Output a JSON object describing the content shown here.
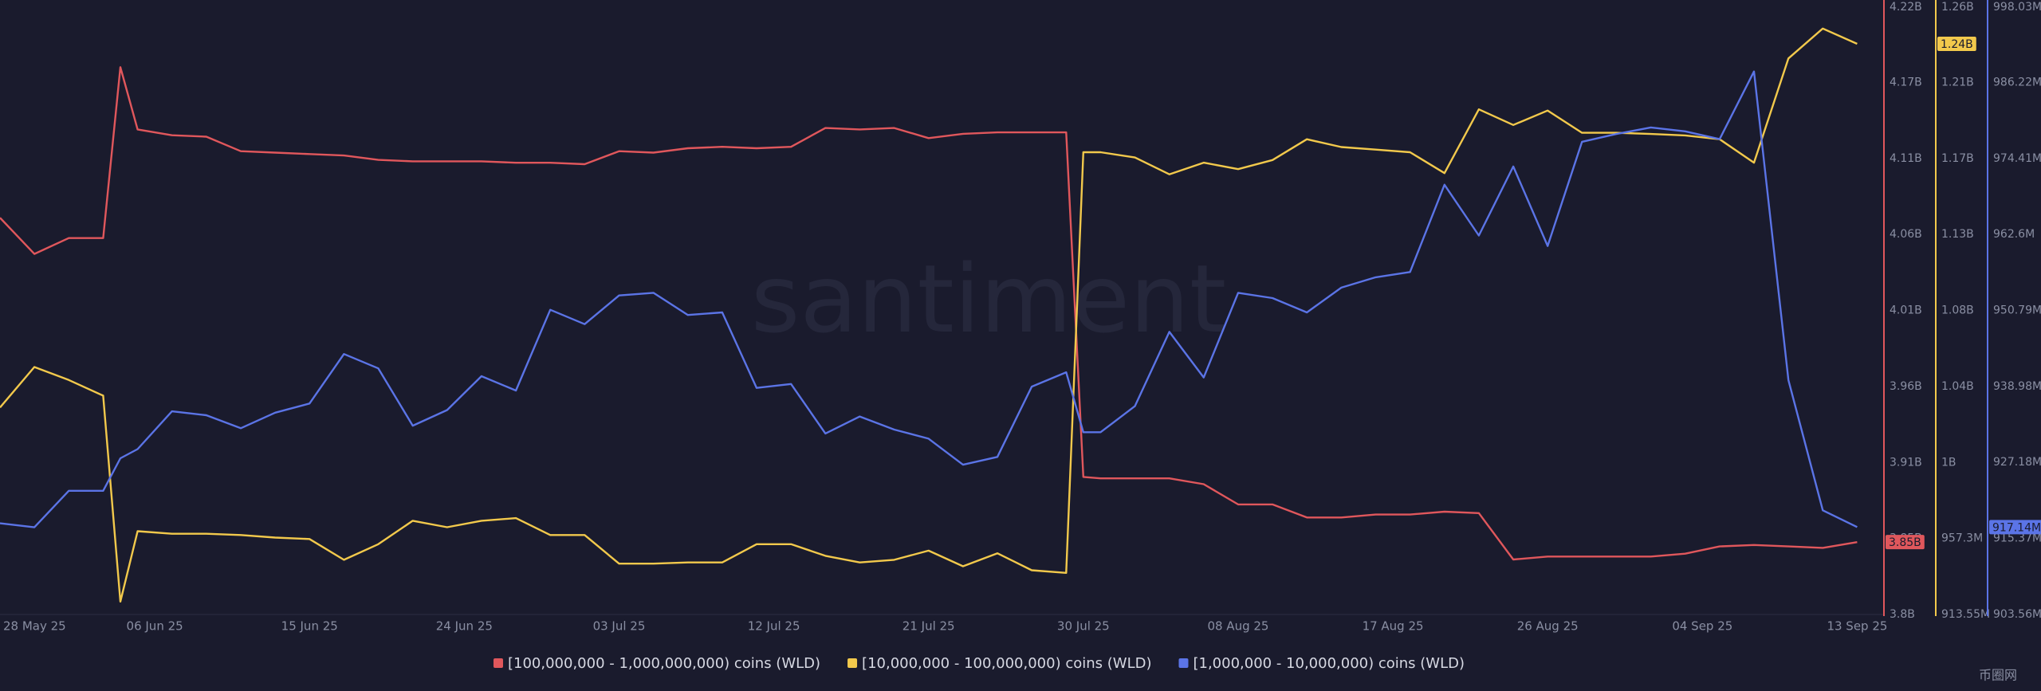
{
  "chart_data": {
    "type": "line",
    "watermark": "santiment",
    "corner_logo": "币圈网",
    "x": [
      "2025-05-28",
      "2025-05-30",
      "2025-06-01",
      "2025-06-03",
      "2025-06-04",
      "2025-06-05",
      "2025-06-07",
      "2025-06-09",
      "2025-06-11",
      "2025-06-13",
      "2025-06-15",
      "2025-06-17",
      "2025-06-19",
      "2025-06-21",
      "2025-06-23",
      "2025-06-25",
      "2025-06-27",
      "2025-06-29",
      "2025-07-01",
      "2025-07-03",
      "2025-07-05",
      "2025-07-07",
      "2025-07-09",
      "2025-07-11",
      "2025-07-13",
      "2025-07-15",
      "2025-07-17",
      "2025-07-19",
      "2025-07-21",
      "2025-07-23",
      "2025-07-25",
      "2025-07-27",
      "2025-07-29",
      "2025-07-30",
      "2025-07-31",
      "2025-08-02",
      "2025-08-04",
      "2025-08-06",
      "2025-08-08",
      "2025-08-10",
      "2025-08-12",
      "2025-08-14",
      "2025-08-16",
      "2025-08-18",
      "2025-08-20",
      "2025-08-22",
      "2025-08-24",
      "2025-08-26",
      "2025-08-28",
      "2025-08-30",
      "2025-09-01",
      "2025-09-03",
      "2025-09-05",
      "2025-09-07",
      "2025-09-09",
      "2025-09-11",
      "2025-09-13"
    ],
    "xlim": [
      "2025-05-28",
      "2025-09-14"
    ],
    "xticks": [
      {
        "value": "2025-05-28",
        "label": "28 May 25"
      },
      {
        "value": "2025-06-06",
        "label": "06 Jun 25"
      },
      {
        "value": "2025-06-15",
        "label": "15 Jun 25"
      },
      {
        "value": "2025-06-24",
        "label": "24 Jun 25"
      },
      {
        "value": "2025-07-03",
        "label": "03 Jul 25"
      },
      {
        "value": "2025-07-12",
        "label": "12 Jul 25"
      },
      {
        "value": "2025-07-21",
        "label": "21 Jul 25"
      },
      {
        "value": "2025-07-30",
        "label": "30 Jul 25"
      },
      {
        "value": "2025-08-08",
        "label": "08 Aug 25"
      },
      {
        "value": "2025-08-17",
        "label": "17 Aug 25"
      },
      {
        "value": "2025-08-26",
        "label": "26 Aug 25"
      },
      {
        "value": "2025-09-04",
        "label": "04 Sep 25"
      },
      {
        "value": "2025-09-13",
        "label": "13 Sep 25"
      }
    ],
    "ylim": [
      3800000000.0,
      4220000000.0
    ],
    "yticks": [
      {
        "value": 3800000000.0,
        "label": "3.8B"
      },
      {
        "value": 3852500000.0,
        "label": "3.85B"
      },
      {
        "value": 3905000000.0,
        "label": "3.91B"
      },
      {
        "value": 3957500000.0,
        "label": "3.96B"
      },
      {
        "value": 4010000000.0,
        "label": "4.01B"
      },
      {
        "value": 4062500000.0,
        "label": "4.06B"
      },
      {
        "value": 4115000000.0,
        "label": "4.11B"
      },
      {
        "value": 4167500000.0,
        "label": "4.17B"
      },
      {
        "value": 4220000000.0,
        "label": "4.22B"
      }
    ],
    "y2lim": [
      913550000.0,
      1263550000.0
    ],
    "y2ticks": [
      {
        "value": 913550000.0,
        "label": "913.55M"
      },
      {
        "value": 957300000.0,
        "label": "957.3M"
      },
      {
        "value": 1001050000.0,
        "label": "1B"
      },
      {
        "value": 1044800000.0,
        "label": "1.04B"
      },
      {
        "value": 1088550000.0,
        "label": "1.08B"
      },
      {
        "value": 1132300000.0,
        "label": "1.13B"
      },
      {
        "value": 1176050000.0,
        "label": "1.17B"
      },
      {
        "value": 1219800000.0,
        "label": "1.21B"
      },
      {
        "value": 1263550000.0,
        "label": "1.26B"
      }
    ],
    "y3lim": [
      903560000.0,
      998030000.0
    ],
    "y3ticks": [
      {
        "value": 903560000.0,
        "label": "903.56M"
      },
      {
        "value": 915370000.0,
        "label": "915.37M"
      },
      {
        "value": 927180000.0,
        "label": "927.18M"
      },
      {
        "value": 938980000.0,
        "label": "938.98M"
      },
      {
        "value": 950790000.0,
        "label": "950.79M"
      },
      {
        "value": 962600000.0,
        "label": "962.6M"
      },
      {
        "value": 974410000.0,
        "label": "974.41M"
      },
      {
        "value": 986220000.0,
        "label": "986.22M"
      },
      {
        "value": 998030000.0,
        "label": "998.03M"
      }
    ],
    "series": [
      {
        "name": "[100,000,000 - 1,000,000,000) coins (WLD)",
        "color": "#e0575c",
        "axis": "y",
        "last_label": "3.85B",
        "values": [
          4074000000.0,
          4049000000.0,
          4060000000.0,
          4060000000.0,
          4178000000.0,
          4135000000.0,
          4131000000.0,
          4130000000.0,
          4120000000.0,
          4119000000.0,
          4118000000.0,
          4117000000.0,
          4114000000.0,
          4113000000.0,
          4113000000.0,
          4113000000.0,
          4112000000.0,
          4112000000.0,
          4111000000.0,
          4120000000.0,
          4119000000.0,
          4122000000.0,
          4123000000.0,
          4122000000.0,
          4123000000.0,
          4136000000.0,
          4135000000.0,
          4136000000.0,
          4129000000.0,
          4132000000.0,
          4133000000.0,
          4133000000.0,
          4133000000.0,
          3895000000.0,
          3894000000.0,
          3894000000.0,
          3894000000.0,
          3890000000.0,
          3876000000.0,
          3876000000.0,
          3867000000.0,
          3867000000.0,
          3869000000.0,
          3869000000.0,
          3871000000.0,
          3870000000.0,
          3838000000.0,
          3840000000.0,
          3840000000.0,
          3840000000.0,
          3840000000.0,
          3842000000.0,
          3847000000.0,
          3848000000.0,
          3847000000.0,
          3846000000.0,
          3850000000.0
        ]
      },
      {
        "name": "[10,000,000 - 100,000,000) coins (WLD)",
        "color": "#f2c94c",
        "axis": "y2",
        "last_label": "1.24B",
        "values": [
          1032700000.0,
          1056000000.0,
          1048500000.0,
          1039500000.0,
          921000000.0,
          961500000.0,
          960000000.0,
          960000000.0,
          959300000.0,
          957800000.0,
          957000000.0,
          945000000.0,
          954000000.0,
          967500000.0,
          963800000.0,
          967500000.0,
          969000000.0,
          959300000.0,
          959300000.0,
          942800000.0,
          942800000.0,
          943500000.0,
          943500000.0,
          954000000.0,
          954000000.0,
          947300000.0,
          943500000.0,
          945000000.0,
          950300000.0,
          941300000.0,
          948800000.0,
          939000000.0,
          937500000.0,
          1179600000.0,
          1179600000.0,
          1176600000.0,
          1166900000.0,
          1173600000.0,
          1169900000.0,
          1175100000.0,
          1187100000.0,
          1182600000.0,
          1181100000.0,
          1179600000.0,
          1167600000.0,
          1204300000.0,
          1195300000.0,
          1203600000.0,
          1190800000.0,
          1190800000.0,
          1190100000.0,
          1189300000.0,
          1187100000.0,
          1173600000.0,
          1233600000.0,
          1250800000.0,
          1242000000.0
        ]
      },
      {
        "name": "[1,000,000 - 10,000,000) coins (WLD)",
        "color": "#5b74e6",
        "axis": "y3",
        "last_label": "917.14M",
        "values": [
          917720000.0,
          917110000.0,
          922780000.0,
          922780000.0,
          927830000.0,
          929250000.0,
          935120000.0,
          934510000.0,
          932490000.0,
          934910000.0,
          936330000.0,
          944020000.0,
          941790000.0,
          932890000.0,
          935320000.0,
          940580000.0,
          938350000.0,
          950900000.0,
          948670000.0,
          953120000.0,
          953530000.0,
          950090000.0,
          950490000.0,
          938760000.0,
          939370000.0,
          931680000.0,
          934310000.0,
          932290000.0,
          930870000.0,
          926820000.0,
          928040000.0,
          938960000.0,
          941190000.0,
          931880000.0,
          931880000.0,
          935930000.0,
          947460000.0,
          940380000.0,
          953530000.0,
          952720000.0,
          950490000.0,
          954330000.0,
          955950000.0,
          956760000.0,
          970320000.0,
          962430000.0,
          973150000.0,
          960810000.0,
          976990000.0,
          978210000.0,
          979220000.0,
          978610000.0,
          977400000.0,
          987910000.0,
          939970000.0,
          919740000.0,
          917140000.0
        ]
      }
    ]
  }
}
